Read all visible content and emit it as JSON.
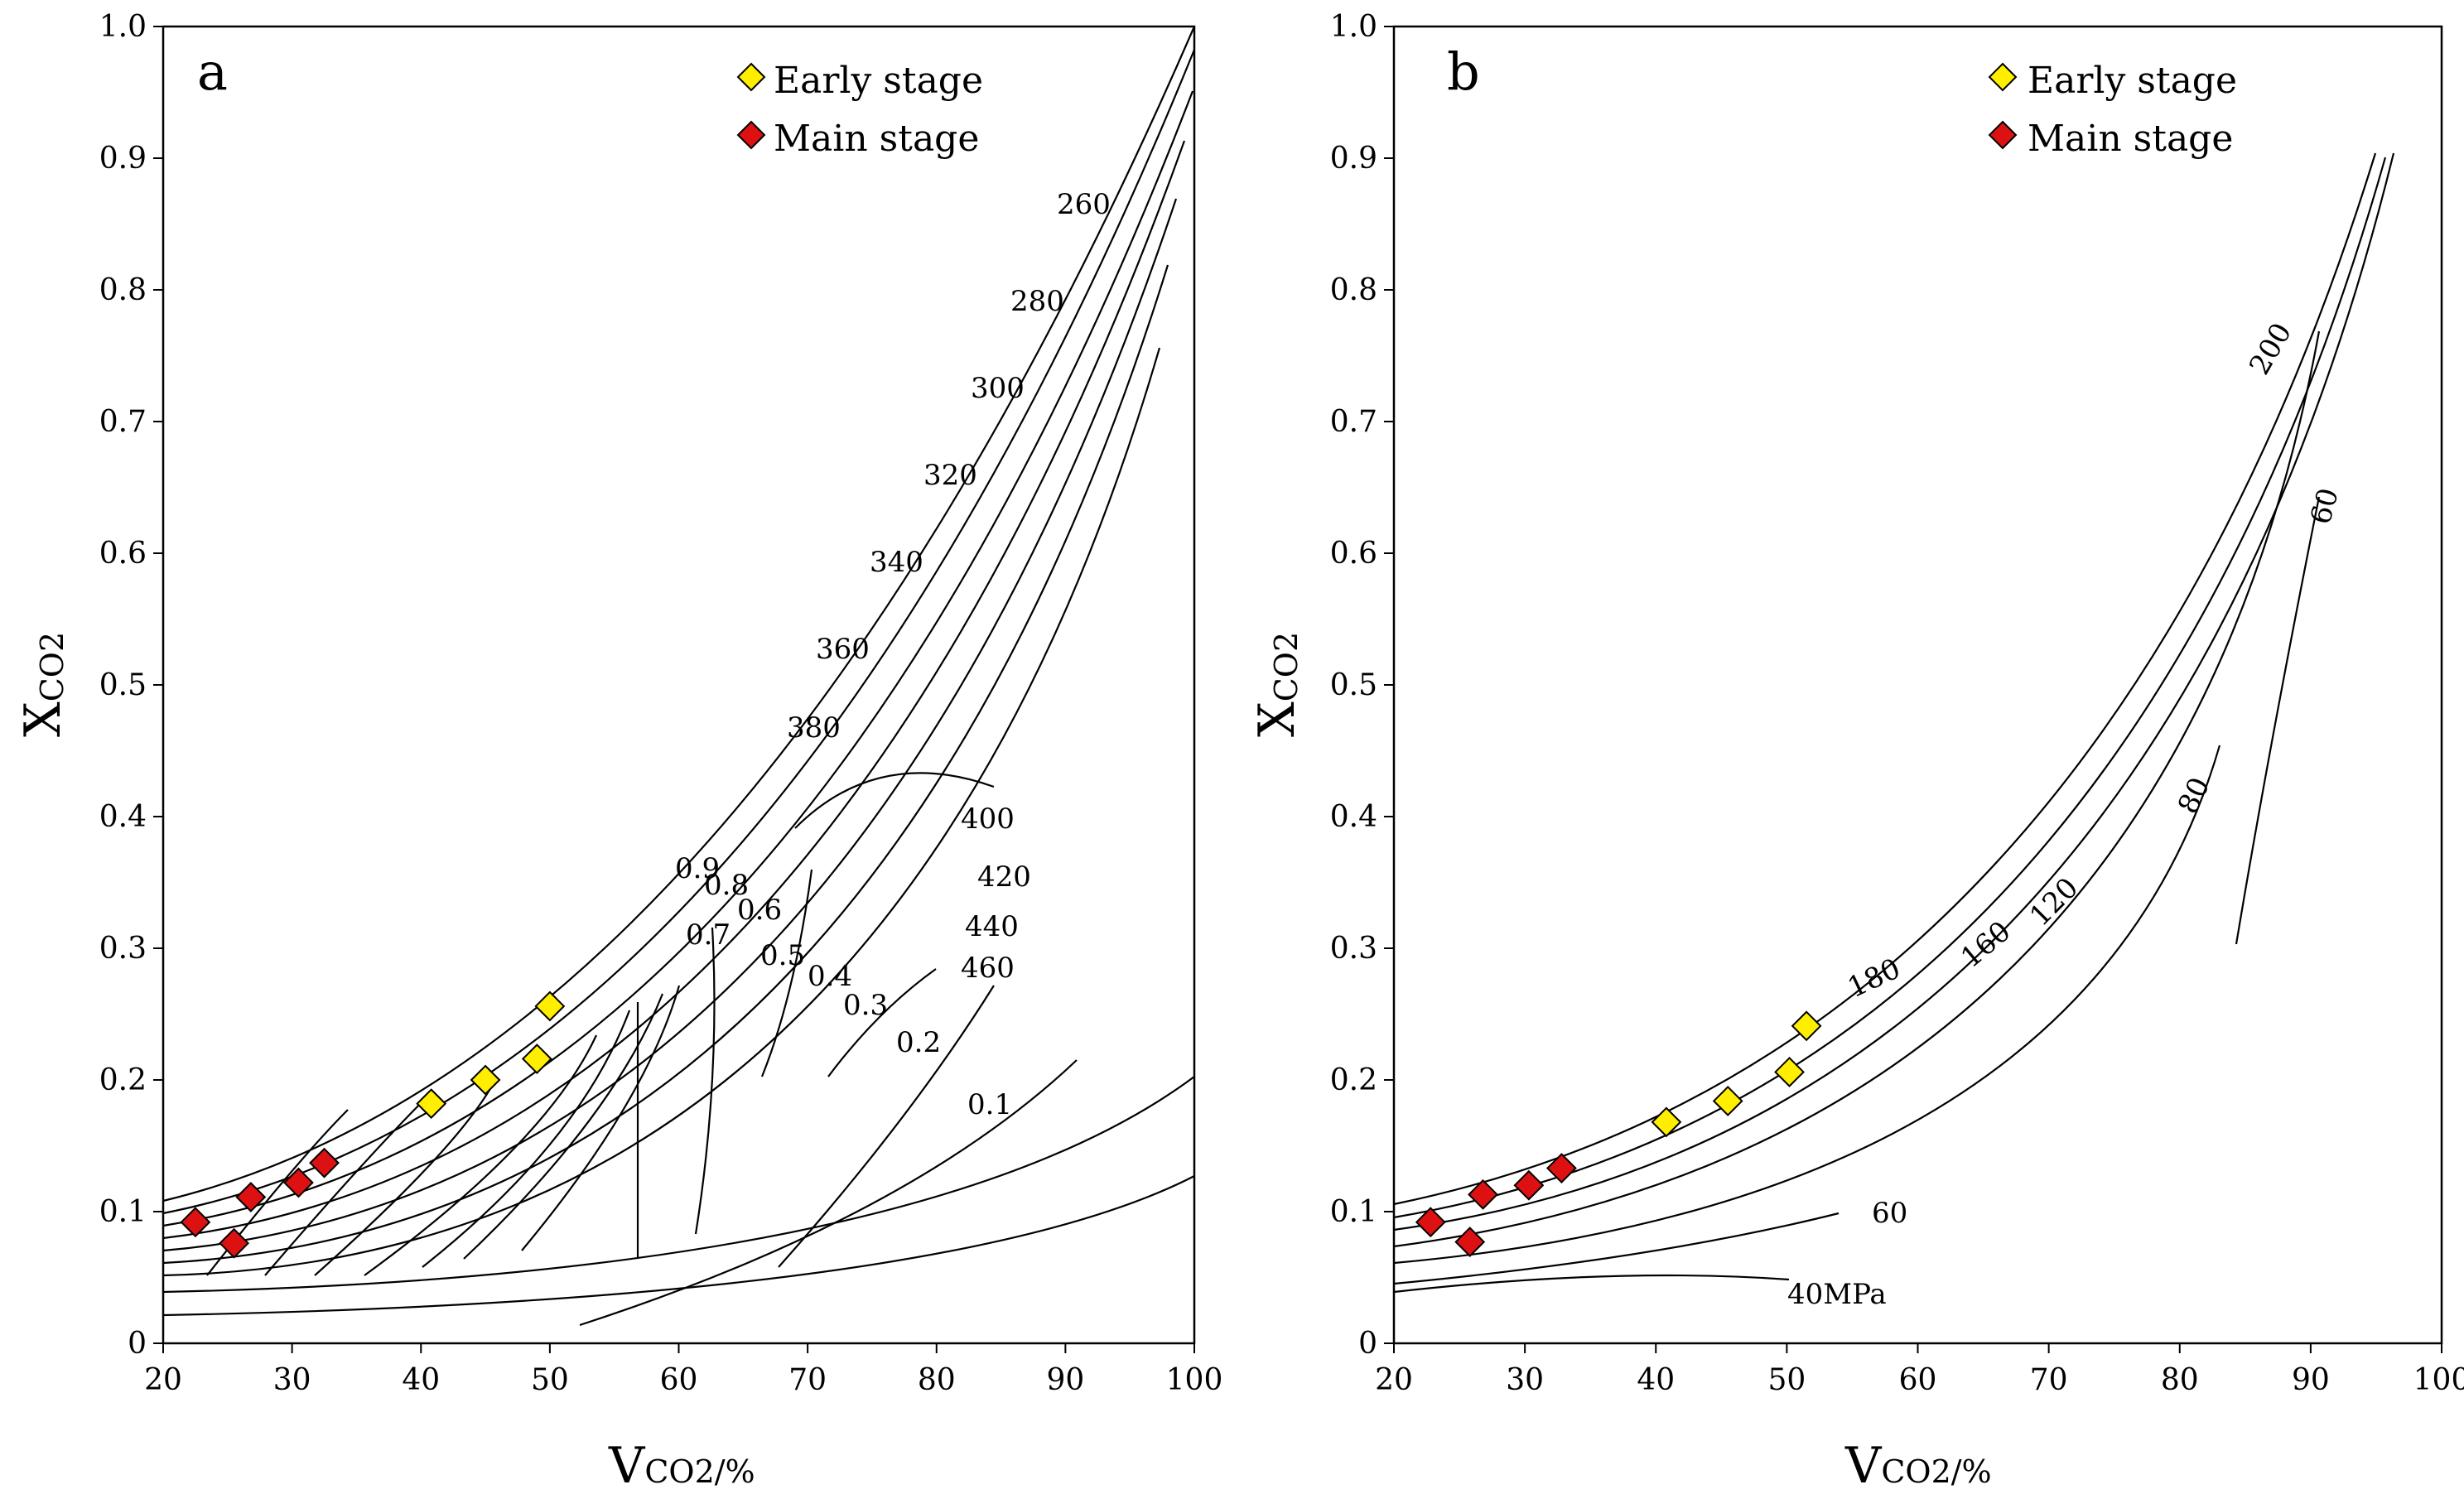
{
  "chart_data": [
    {
      "type": "scatter",
      "panel": "a",
      "xlabel": "VCO2/%",
      "ylabel": "XCO2",
      "xlim": [
        20,
        100
      ],
      "ylim": [
        0,
        1.0
      ],
      "xticks": [
        "20",
        "30",
        "40",
        "50",
        "60",
        "70",
        "80",
        "90",
        "100"
      ],
      "yticks": [
        "0",
        "0.1",
        "0.2",
        "0.3",
        "0.4",
        "0.5",
        "0.6",
        "0.7",
        "0.8",
        "0.9",
        "1.0"
      ],
      "grid": false,
      "legend_position": "top-right",
      "series": [
        {
          "name": "Early stage",
          "color": "#ffee00",
          "points": [
            {
              "x": 40.8,
              "y": 0.182
            },
            {
              "x": 45,
              "y": 0.2
            },
            {
              "x": 49,
              "y": 0.216
            },
            {
              "x": 50,
              "y": 0.256
            }
          ]
        },
        {
          "name": "Main stage",
          "color": "#dd1111",
          "points": [
            {
              "x": 22.5,
              "y": 0.092
            },
            {
              "x": 25.5,
              "y": 0.076
            },
            {
              "x": 26.8,
              "y": 0.111
            },
            {
              "x": 30.5,
              "y": 0.122
            },
            {
              "x": 32.5,
              "y": 0.137
            }
          ]
        }
      ],
      "curve_labels": [
        "260",
        "280",
        "300",
        "320",
        "340",
        "360",
        "380",
        "400",
        "420",
        "440",
        "460",
        "0.9",
        "0.8",
        "0.7",
        "0.6",
        "0.5",
        "0.4",
        "0.3",
        "0.2",
        "0.1"
      ]
    },
    {
      "type": "scatter",
      "panel": "b",
      "xlabel": "VCO2/%",
      "ylabel": "XCO2",
      "xlim": [
        20,
        100
      ],
      "ylim": [
        0,
        1.0
      ],
      "xticks": [
        "20",
        "30",
        "40",
        "50",
        "60",
        "70",
        "80",
        "90",
        "100"
      ],
      "yticks": [
        "0",
        "0.1",
        "0.2",
        "0.3",
        "0.4",
        "0.5",
        "0.6",
        "0.7",
        "0.8",
        "0.9",
        "1.0"
      ],
      "grid": false,
      "legend_position": "top-right",
      "series": [
        {
          "name": "Early stage",
          "color": "#ffee00",
          "points": [
            {
              "x": 40.8,
              "y": 0.168
            },
            {
              "x": 45.5,
              "y": 0.184
            },
            {
              "x": 50.2,
              "y": 0.206
            },
            {
              "x": 51.5,
              "y": 0.241
            }
          ]
        },
        {
          "name": "Main stage",
          "color": "#dd1111",
          "points": [
            {
              "x": 22.8,
              "y": 0.092
            },
            {
              "x": 25.8,
              "y": 0.077
            },
            {
              "x": 26.8,
              "y": 0.113
            },
            {
              "x": 30.3,
              "y": 0.12
            },
            {
              "x": 32.8,
              "y": 0.133
            }
          ]
        }
      ],
      "curve_labels": [
        "200",
        "180",
        "160",
        "120",
        "80",
        "60",
        "60",
        "40MPa"
      ]
    }
  ]
}
